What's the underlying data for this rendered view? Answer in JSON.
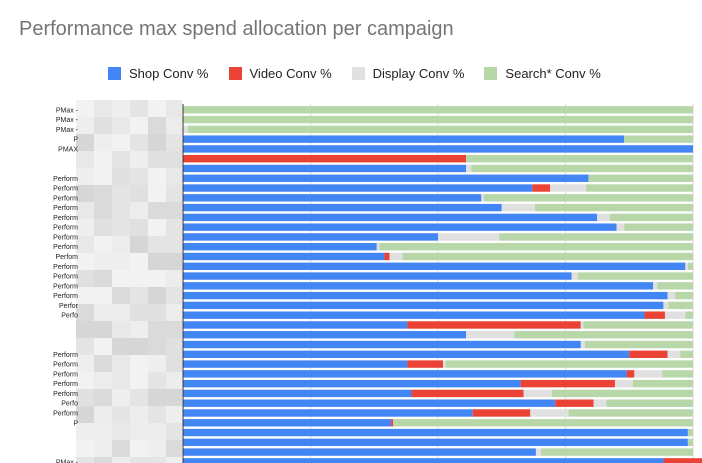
{
  "chart_data": {
    "type": "bar",
    "orientation": "horizontal",
    "stacked": "percent",
    "title": "Performance max spend allocation per campaign",
    "legend_position": "top",
    "grid": true,
    "xlim": [
      0,
      1
    ],
    "series": [
      {
        "name": "Shop Conv %",
        "color": "#4285f4",
        "values": [
          0,
          0,
          0,
          0.865,
          1.0,
          0,
          0.555,
          0.795,
          0.685,
          0.585,
          0.625,
          0.812,
          0.85,
          0.5,
          0.38,
          0.395,
          0.985,
          0.762,
          0.922,
          0.95,
          0.942,
          0.905,
          0.44,
          0.555,
          0.78,
          0.875,
          0.44,
          0.87,
          0.662,
          0.448,
          0.73,
          0.568,
          0.408,
          0.99,
          0.99,
          0.692,
          0.942
        ]
      },
      {
        "name": "Video Conv %",
        "color": "#ea4335",
        "values": [
          0,
          0,
          0,
          0,
          0,
          0.555,
          0,
          0,
          0.035,
          0,
          0,
          0,
          0,
          0,
          0,
          0.01,
          0,
          0,
          0,
          0,
          0,
          0.04,
          0.34,
          0,
          0,
          0.075,
          0.07,
          0.015,
          0.185,
          0.22,
          0.075,
          0.113,
          0.004,
          0,
          0,
          0,
          0.33
        ]
      },
      {
        "name": "Display Conv %",
        "color": "#e0e0e0",
        "values": [
          0,
          0,
          0.01,
          0,
          0,
          0,
          0.01,
          0,
          0.07,
          0.005,
          0.065,
          0.025,
          0.015,
          0.12,
          0.005,
          0.025,
          0.005,
          0.012,
          0.008,
          0.015,
          0.01,
          0.04,
          0.005,
          0.095,
          0.008,
          0.025,
          0.005,
          0.055,
          0.035,
          0.055,
          0.025,
          0.075,
          0,
          0,
          0,
          0.01,
          0.025
        ]
      },
      {
        "name": "Search* Conv %",
        "color": "#b7d7a8",
        "values": [
          1.0,
          1.0,
          0.99,
          0.135,
          0,
          0.445,
          0.435,
          0.205,
          0.21,
          0.41,
          0.31,
          0.163,
          0.135,
          0.38,
          0.615,
          0.57,
          0.01,
          0.226,
          0.07,
          0.035,
          0.048,
          0.015,
          0.215,
          0.35,
          0.212,
          0.025,
          0.485,
          0.06,
          0.118,
          0.277,
          0.17,
          0.244,
          0.588,
          0.01,
          0.01,
          0.298,
          0
        ]
      }
    ],
    "category_labels": [
      "PMax -",
      "PMax -",
      "PMax -",
      "P",
      "PMAX",
      "",
      "",
      "Perform",
      "Perform",
      "Perform",
      "Perform",
      "Perform",
      "Perform",
      "Perform",
      "Perform",
      "Perfom",
      "Perform",
      "Perform",
      "Perform",
      "Perform",
      "Perfor",
      "Perfo",
      "",
      "",
      "",
      "Perform",
      "Perform",
      "Perform",
      "Perform",
      "Perform",
      "Perfo",
      "Perform",
      "P",
      "",
      "",
      "",
      "PMax -"
    ]
  }
}
